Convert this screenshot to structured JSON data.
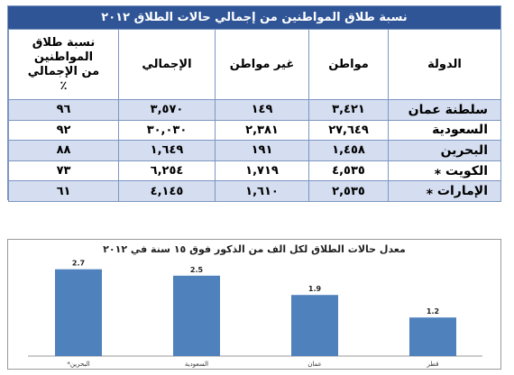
{
  "table": {
    "title": "نسبة طلاق المواطنين من إجمالي حالات الطلاق ٢٠١٢",
    "headers": {
      "country": "الدولة",
      "citizen": "مواطن",
      "non_citizen": "غير مواطن",
      "total": "الإجمالي",
      "ratio": "نسبة طلاق المواطنين من الإجمالي ٪"
    },
    "rows": [
      {
        "country": "سلطنة عمان",
        "citizen": "٣,٤٢١",
        "non_citizen": "١٤٩",
        "total": "٣,٥٧٠",
        "ratio": "٩٦"
      },
      {
        "country": "السعودية",
        "citizen": "٢٧,٦٤٩",
        "non_citizen": "٢,٣٨١",
        "total": "٣٠,٠٣٠",
        "ratio": "٩٢"
      },
      {
        "country": "البحرين",
        "citizen": "١,٤٥٨",
        "non_citizen": "١٩١",
        "total": "١,٦٤٩",
        "ratio": "٨٨"
      },
      {
        "country": "الكويت ⁎",
        "citizen": "٤,٥٣٥",
        "non_citizen": "١,٧١٩",
        "total": "٦,٢٥٤",
        "ratio": "٧٣"
      },
      {
        "country": "الإمارات ⁎",
        "citizen": "٢,٥٣٥",
        "non_citizen": "١,٦١٠",
        "total": "٤,١٤٥",
        "ratio": "٦١"
      }
    ]
  },
  "chart_data": {
    "type": "bar",
    "title": "معدل حالات الطلاق لكل الف من الذكور فوق ١٥ سنة في ٢٠١٢",
    "categories": [
      "البحرين*",
      "السعودية",
      "عمان",
      "قطر"
    ],
    "values": [
      2.7,
      2.5,
      1.9,
      1.2
    ],
    "value_labels": [
      "2.7",
      "2.5",
      "1.9",
      "1.2"
    ],
    "ylim": [
      0,
      3
    ],
    "grid": false,
    "bar_color": "#4f81bd"
  }
}
